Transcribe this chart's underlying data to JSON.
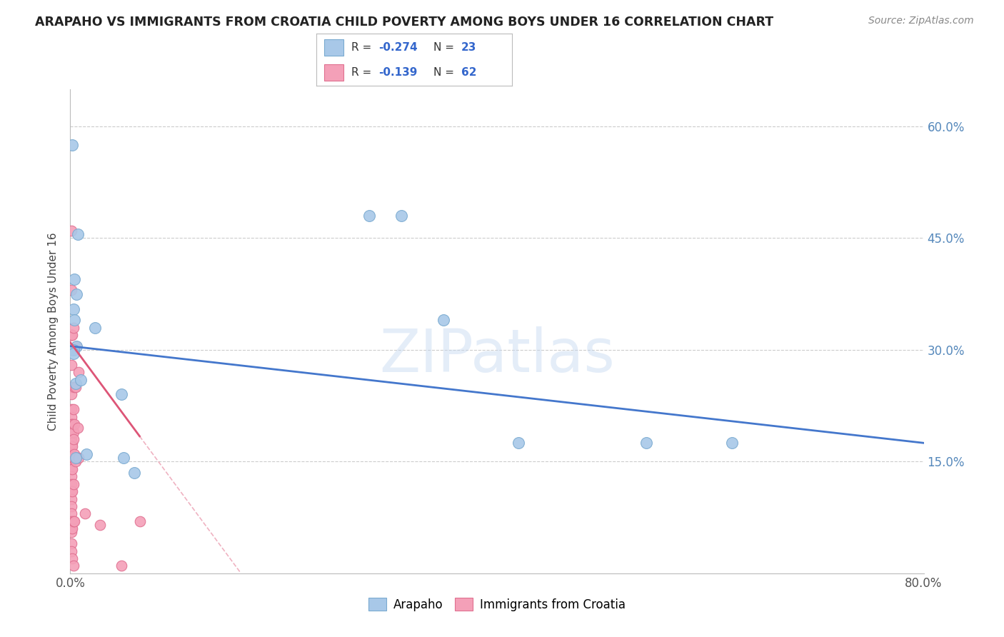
{
  "title": "ARAPAHO VS IMMIGRANTS FROM CROATIA CHILD POVERTY AMONG BOYS UNDER 16 CORRELATION CHART",
  "source": "Source: ZipAtlas.com",
  "ylabel": "Child Poverty Among Boys Under 16",
  "xlim": [
    0,
    0.8
  ],
  "ylim": [
    0,
    0.65
  ],
  "yticks_right": [
    0.15,
    0.3,
    0.45,
    0.6
  ],
  "yticklabels_right": [
    "15.0%",
    "30.0%",
    "45.0%",
    "60.0%"
  ],
  "watermark": "ZIPatlas",
  "legend1_r": "-0.274",
  "legend1_n": "23",
  "legend2_r": "-0.139",
  "legend2_n": "62",
  "arapaho_color": "#a8c8e8",
  "croatia_color": "#f4a0b8",
  "arapaho_edge": "#7aaad0",
  "croatia_edge": "#e07090",
  "line_arapaho_color": "#4477cc",
  "line_croatia_color": "#dd5577",
  "grid_color": "#cccccc",
  "background_color": "#ffffff",
  "arapaho_points_x": [
    0.002,
    0.007,
    0.004,
    0.006,
    0.003,
    0.004,
    0.006,
    0.003,
    0.003,
    0.005,
    0.01,
    0.005,
    0.015,
    0.023,
    0.048,
    0.05,
    0.06,
    0.42,
    0.54,
    0.62,
    0.28,
    0.31,
    0.35
  ],
  "arapaho_points_y": [
    0.575,
    0.455,
    0.395,
    0.375,
    0.355,
    0.34,
    0.305,
    0.3,
    0.295,
    0.255,
    0.26,
    0.155,
    0.16,
    0.33,
    0.24,
    0.155,
    0.135,
    0.175,
    0.175,
    0.175,
    0.48,
    0.48,
    0.34
  ],
  "croatia_points_x": [
    0.001,
    0.001,
    0.001,
    0.001,
    0.001,
    0.001,
    0.001,
    0.001,
    0.001,
    0.001,
    0.001,
    0.001,
    0.001,
    0.001,
    0.001,
    0.001,
    0.001,
    0.001,
    0.001,
    0.001,
    0.001,
    0.001,
    0.001,
    0.001,
    0.001,
    0.001,
    0.001,
    0.001,
    0.001,
    0.001,
    0.002,
    0.002,
    0.002,
    0.002,
    0.002,
    0.002,
    0.002,
    0.002,
    0.003,
    0.003,
    0.003,
    0.003,
    0.003,
    0.003,
    0.003,
    0.004,
    0.004,
    0.004,
    0.004,
    0.005,
    0.005,
    0.006,
    0.006,
    0.007,
    0.008,
    0.008,
    0.014,
    0.028,
    0.048,
    0.065,
    0.002,
    0.003
  ],
  "croatia_points_y": [
    0.46,
    0.38,
    0.32,
    0.32,
    0.3,
    0.28,
    0.25,
    0.24,
    0.22,
    0.21,
    0.2,
    0.19,
    0.18,
    0.175,
    0.17,
    0.16,
    0.155,
    0.15,
    0.14,
    0.13,
    0.12,
    0.11,
    0.1,
    0.09,
    0.08,
    0.07,
    0.06,
    0.055,
    0.04,
    0.03,
    0.32,
    0.2,
    0.175,
    0.17,
    0.155,
    0.14,
    0.11,
    0.06,
    0.33,
    0.22,
    0.19,
    0.18,
    0.155,
    0.12,
    0.07,
    0.25,
    0.2,
    0.16,
    0.07,
    0.25,
    0.15,
    0.305,
    0.155,
    0.195,
    0.27,
    0.155,
    0.08,
    0.065,
    0.01,
    0.07,
    0.02,
    0.01
  ]
}
